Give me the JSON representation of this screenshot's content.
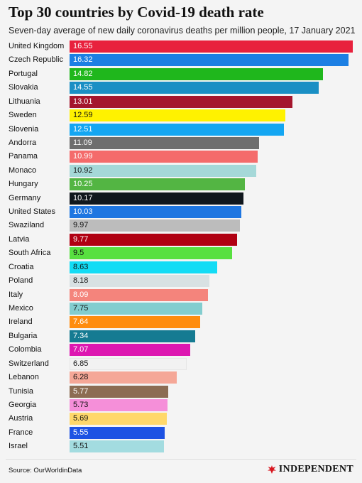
{
  "header": {
    "title": "Top 30 countries by Covid-19 death rate",
    "subtitle": "Seven-day average of new daily coronavirus deaths per million people, 17 January 2021"
  },
  "chart_data": {
    "type": "bar",
    "orientation": "horizontal",
    "title": "Top 30 countries by Covid-19 death rate",
    "subtitle": "Seven-day average of new daily coronavirus deaths per million people, 17 January 2021",
    "xlabel": "",
    "ylabel": "",
    "xlim": [
      0,
      16.55
    ],
    "grid": false,
    "legend": "none",
    "categories": [
      "United Kingdom",
      "Czech Republic",
      "Portugal",
      "Slovakia",
      "Lithuania",
      "Sweden",
      "Slovenia",
      "Andorra",
      "Panama",
      "Monaco",
      "Hungary",
      "Germany",
      "United States",
      "Swaziland",
      "Latvia",
      "South Africa",
      "Croatia",
      "Poland",
      "Italy",
      "Mexico",
      "Ireland",
      "Bulgaria",
      "Colombia",
      "Switzerland",
      "Lebanon",
      "Tunisia",
      "Georgia",
      "Austria",
      "France",
      "Israel"
    ],
    "values": [
      16.55,
      16.32,
      14.82,
      14.55,
      13.01,
      12.59,
      12.51,
      11.09,
      10.99,
      10.92,
      10.25,
      10.17,
      10.03,
      9.97,
      9.77,
      9.5,
      8.63,
      8.18,
      8.09,
      7.75,
      7.64,
      7.34,
      7.07,
      6.85,
      6.28,
      5.77,
      5.73,
      5.69,
      5.55,
      5.51
    ],
    "value_labels": [
      "16.55",
      "16.32",
      "14.82",
      "14.55",
      "13.01",
      "12.59",
      "12.51",
      "11.09",
      "10.99",
      "10.92",
      "10.25",
      "10.17",
      "10.03",
      "9.97",
      "9.77",
      "9.5",
      "8.63",
      "8.18",
      "8.09",
      "7.75",
      "7.64",
      "7.34",
      "7.07",
      "6.85",
      "6.28",
      "5.77",
      "5.73",
      "5.69",
      "5.55",
      "5.51"
    ],
    "colors": [
      "#e8213d",
      "#1c7fe3",
      "#1fb71c",
      "#1a8fc4",
      "#a4162d",
      "#fff200",
      "#14a6f2",
      "#6e6e6e",
      "#f46b6b",
      "#a5d8d8",
      "#53b543",
      "#10171d",
      "#1e76e1",
      "#bcbcbc",
      "#b00012",
      "#58e040",
      "#13dcf5",
      "#d8e1e3",
      "#f4847c",
      "#83cdcf",
      "#ff8c0f",
      "#157b92",
      "#dd17b1",
      "#f2f2f2",
      "#f5a797",
      "#8c6c53",
      "#f58fd9",
      "#ffd86b",
      "#1d52e3",
      "#a3dce0"
    ],
    "label_colors": [
      "#ffffff",
      "#ffffff",
      "#ffffff",
      "#ffffff",
      "#ffffff",
      "#111111",
      "#ffffff",
      "#ffffff",
      "#ffffff",
      "#111111",
      "#ffffff",
      "#ffffff",
      "#ffffff",
      "#111111",
      "#ffffff",
      "#111111",
      "#111111",
      "#111111",
      "#ffffff",
      "#111111",
      "#ffffff",
      "#ffffff",
      "#ffffff",
      "#111111",
      "#111111",
      "#ffffff",
      "#111111",
      "#111111",
      "#ffffff",
      "#111111"
    ]
  },
  "footer": {
    "source": "Source: OurWorldinData",
    "logo_text": "INDEPENDENT",
    "logo_icon": "eagle-icon"
  }
}
